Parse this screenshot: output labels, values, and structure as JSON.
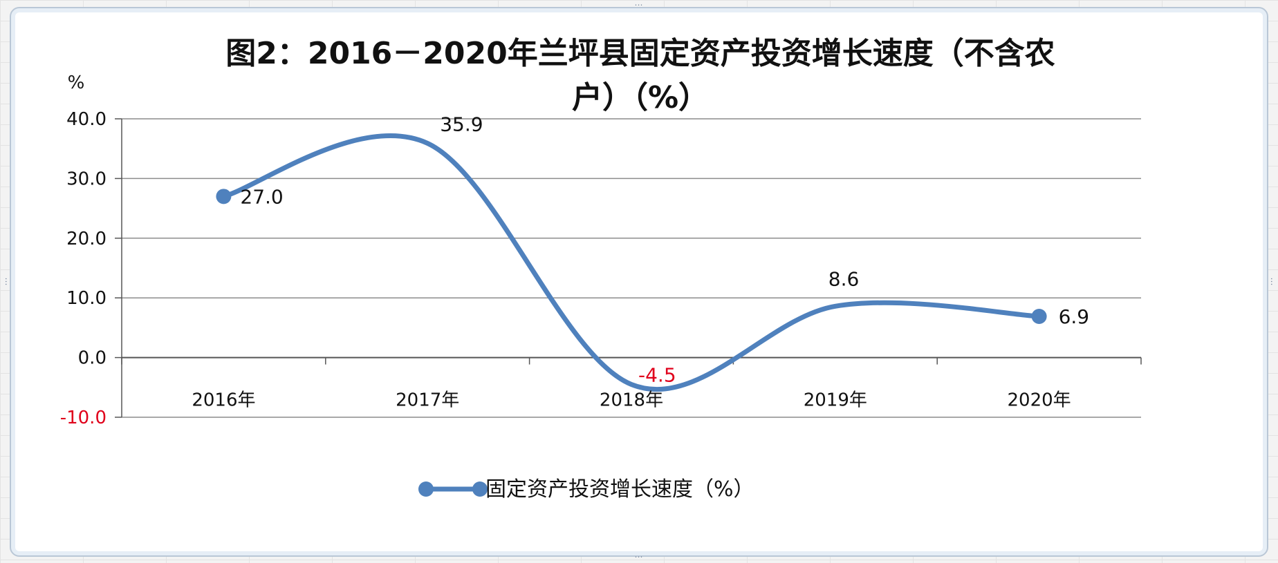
{
  "chart_data": {
    "type": "line",
    "title": "图2：2016－2020年兰坪县固定资产投资增长速度（不含农户）（%）",
    "title_line1": "图2：2016－2020年兰坪县固定资产投资增长速度（不含农",
    "title_line2": "户）（%）",
    "ylabel": "%",
    "categories": [
      "2016年",
      "2017年",
      "2018年",
      "2019年",
      "2020年"
    ],
    "series": [
      {
        "name": "固定资产投资增长速度（%）",
        "values": [
          27.0,
          35.9,
          -4.5,
          8.6,
          6.9
        ],
        "labels": [
          "27.0",
          "35.9",
          "-4.5",
          "8.6",
          "6.9"
        ],
        "color": "#4f81bd"
      }
    ],
    "ylim": [
      -10,
      40
    ],
    "yticks": [
      "40.0",
      "30.0",
      "20.0",
      "10.0",
      "0.0",
      "-10.0"
    ],
    "ytick_values": [
      40,
      30,
      20,
      10,
      0,
      -10
    ],
    "negative_color": "#e0001b",
    "grid": true,
    "smooth": true,
    "legend_position": "bottom"
  }
}
